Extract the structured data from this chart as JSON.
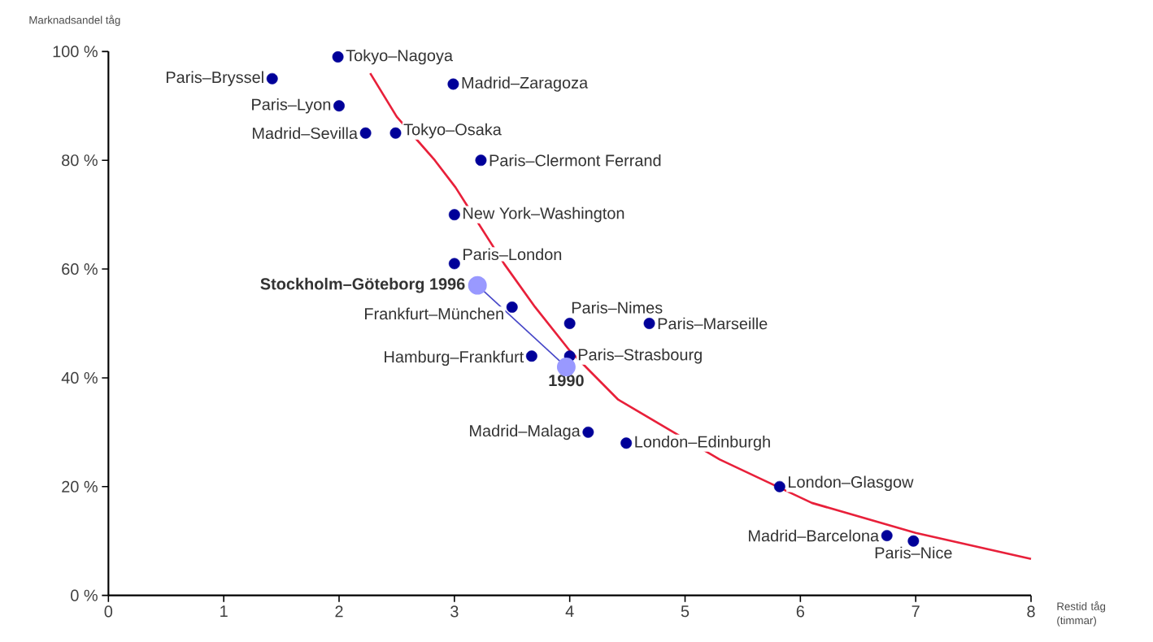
{
  "chart_data": {
    "type": "scatter",
    "xlabel": "Restid tåg (timmar)",
    "ylabel": "Marknadsandel tåg",
    "xlim": [
      0,
      8
    ],
    "ylim": [
      0,
      100
    ],
    "xticks": [
      0,
      1,
      2,
      3,
      4,
      5,
      6,
      7,
      8
    ],
    "yticks": [
      {
        "value": 0,
        "label": "0 %"
      },
      {
        "value": 20,
        "label": "20 %"
      },
      {
        "value": 40,
        "label": "40 %"
      },
      {
        "value": 60,
        "label": "60 %"
      },
      {
        "value": 80,
        "label": "80 %"
      },
      {
        "value": 100,
        "label": "100 %"
      }
    ],
    "marker": "circle",
    "series": [
      {
        "color": "#000099",
        "x": [
          1.99,
          1.42,
          2.99,
          2.0,
          2.23,
          2.49,
          3.23,
          3.0,
          3.0,
          3.5,
          4.0,
          4.69,
          3.67,
          4.0,
          4.16,
          4.49,
          5.82,
          6.75,
          6.98
        ],
        "values": [
          99,
          95,
          94,
          90,
          85,
          85,
          80,
          70,
          61,
          53,
          50,
          50,
          44,
          44,
          30,
          28,
          20,
          11,
          10
        ]
      },
      {
        "type": "line",
        "color": "#9999ff",
        "x": [
          3.2,
          3.97
        ],
        "values": [
          57,
          42
        ]
      },
      {
        "type": "line",
        "color": "#e8203a",
        "marker": "none",
        "x": [
          2.27,
          2.5,
          2.83,
          3.01,
          3.43,
          3.7,
          4.0,
          4.42,
          4.9,
          5.3,
          6.1,
          7.0,
          8.0
        ],
        "values": [
          96,
          88,
          80,
          75,
          61,
          53,
          45,
          36,
          30,
          25,
          17,
          11.5,
          6.7
        ]
      }
    ],
    "annotations": [
      {
        "text": "Tokyo–Nagoya",
        "x": 1.99,
        "y": 99
      },
      {
        "text": "Paris–Bryssel",
        "x": 1.42,
        "y": 95
      },
      {
        "text": "Madrid–Zaragoza",
        "x": 2.99,
        "y": 94
      },
      {
        "text": "Paris–Lyon",
        "x": 2.0,
        "y": 90
      },
      {
        "text": "Madrid–Sevilla",
        "x": 2.23,
        "y": 85
      },
      {
        "text": "Tokyo–Osaka",
        "x": 2.49,
        "y": 85
      },
      {
        "text": "Paris–Clermont Ferrand",
        "x": 3.23,
        "y": 80
      },
      {
        "text": "New York–Washington",
        "x": 3.0,
        "y": 70
      },
      {
        "text": "Paris–London",
        "x": 3.0,
        "y": 61
      },
      {
        "text": "Stockholm–Göteborg 1996",
        "x": 3.2,
        "y": 57
      },
      {
        "text": "Frankfurt–München",
        "x": 3.5,
        "y": 53
      },
      {
        "text": "Paris–Nimes",
        "x": 4.0,
        "y": 50
      },
      {
        "text": "Paris–Marseille",
        "x": 4.69,
        "y": 50
      },
      {
        "text": "Hamburg–Frankfurt",
        "x": 3.67,
        "y": 44
      },
      {
        "text": "Paris–Strasbourg",
        "x": 4.0,
        "y": 44
      },
      {
        "text": "1990",
        "x": 3.97,
        "y": 42
      },
      {
        "text": "Madrid–Malaga",
        "x": 4.16,
        "y": 30
      },
      {
        "text": "London–Edinburgh",
        "x": 4.49,
        "y": 28
      },
      {
        "text": "London–Glasgow",
        "x": 5.82,
        "y": 20
      },
      {
        "text": "Madrid–Barcelona",
        "x": 6.75,
        "y": 11
      },
      {
        "text": "Paris–Nice",
        "x": 6.98,
        "y": 10
      }
    ]
  }
}
